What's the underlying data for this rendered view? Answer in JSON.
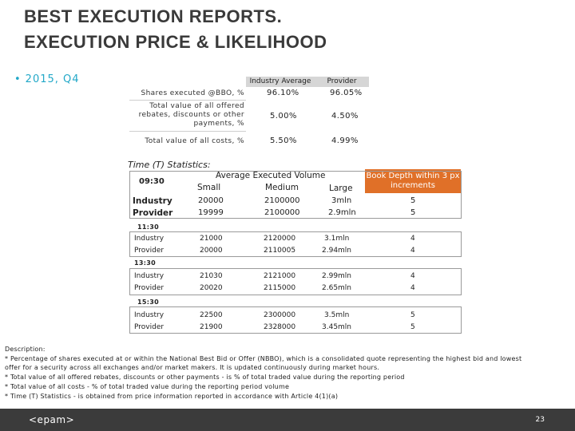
{
  "title": {
    "line1": "BEST EXECUTION REPORTS.",
    "line2": "EXECUTION PRICE & LIKELIHOOD"
  },
  "bullet": {
    "dot": "•",
    "text": "2015, Q4"
  },
  "summary": {
    "headers": [
      "Industry Average",
      "Provider"
    ],
    "rows": [
      {
        "label": "Shares executed @BBO, %",
        "industry": "96.10%",
        "provider": "96.05%"
      },
      {
        "label_lines": [
          "Total value of all offered",
          "rebates, discounts or other",
          "payments, %"
        ],
        "industry": "5.00%",
        "provider": "4.50%"
      },
      {
        "label": "Total value of all costs, %",
        "industry": "5.50%",
        "provider": "4.99%"
      }
    ]
  },
  "time_stats": {
    "title": "Time (T) Statistics:",
    "volume_header": "Average Executed Volume",
    "cols": [
      "Small",
      "Medium",
      "Large"
    ],
    "book_depth_header": "Book Depth within 3 px increments",
    "row_labels": [
      "Industry",
      "Provider"
    ],
    "blocks": [
      {
        "time": "09:30",
        "industry": [
          "20000",
          "2100000",
          "3mln",
          "5"
        ],
        "provider": [
          "19999",
          "2100000",
          "2.9mln",
          "5"
        ]
      },
      {
        "time": "11:30",
        "industry": [
          "21000",
          "2120000",
          "3.1mln",
          "4"
        ],
        "provider": [
          "20000",
          "2110005",
          "2.94mln",
          "4"
        ]
      },
      {
        "time": "13:30",
        "industry": [
          "21030",
          "2121000",
          "2.99mln",
          "4"
        ],
        "provider": [
          "20020",
          "2115000",
          "2.65mln",
          "4"
        ]
      },
      {
        "time": "15:30",
        "industry": [
          "22500",
          "2300000",
          "3.5mln",
          "5"
        ],
        "provider": [
          "21900",
          "2328000",
          "3.45mln",
          "5"
        ]
      }
    ]
  },
  "description": {
    "heading": "Description:",
    "lines": [
      " * Percentage of shares executed at or within the National Best Bid or Offer (NBBO), which is a consolidated quote representing the highest bid and lowest",
      "offer for a security across all exchanges and/or market makers. It is updated continuously during market hours.",
      " * Total value of all offered rebates, discounts or other payments - is % of total traded value during the reporting period",
      " * Total value of all costs - % of total traded value during the reporting period volume",
      " * Time (T) Statistics - is obtained from price information reported in accordance with Article 4(1)(a)"
    ]
  },
  "footer": {
    "logo": "<epam>",
    "page": "23"
  }
}
